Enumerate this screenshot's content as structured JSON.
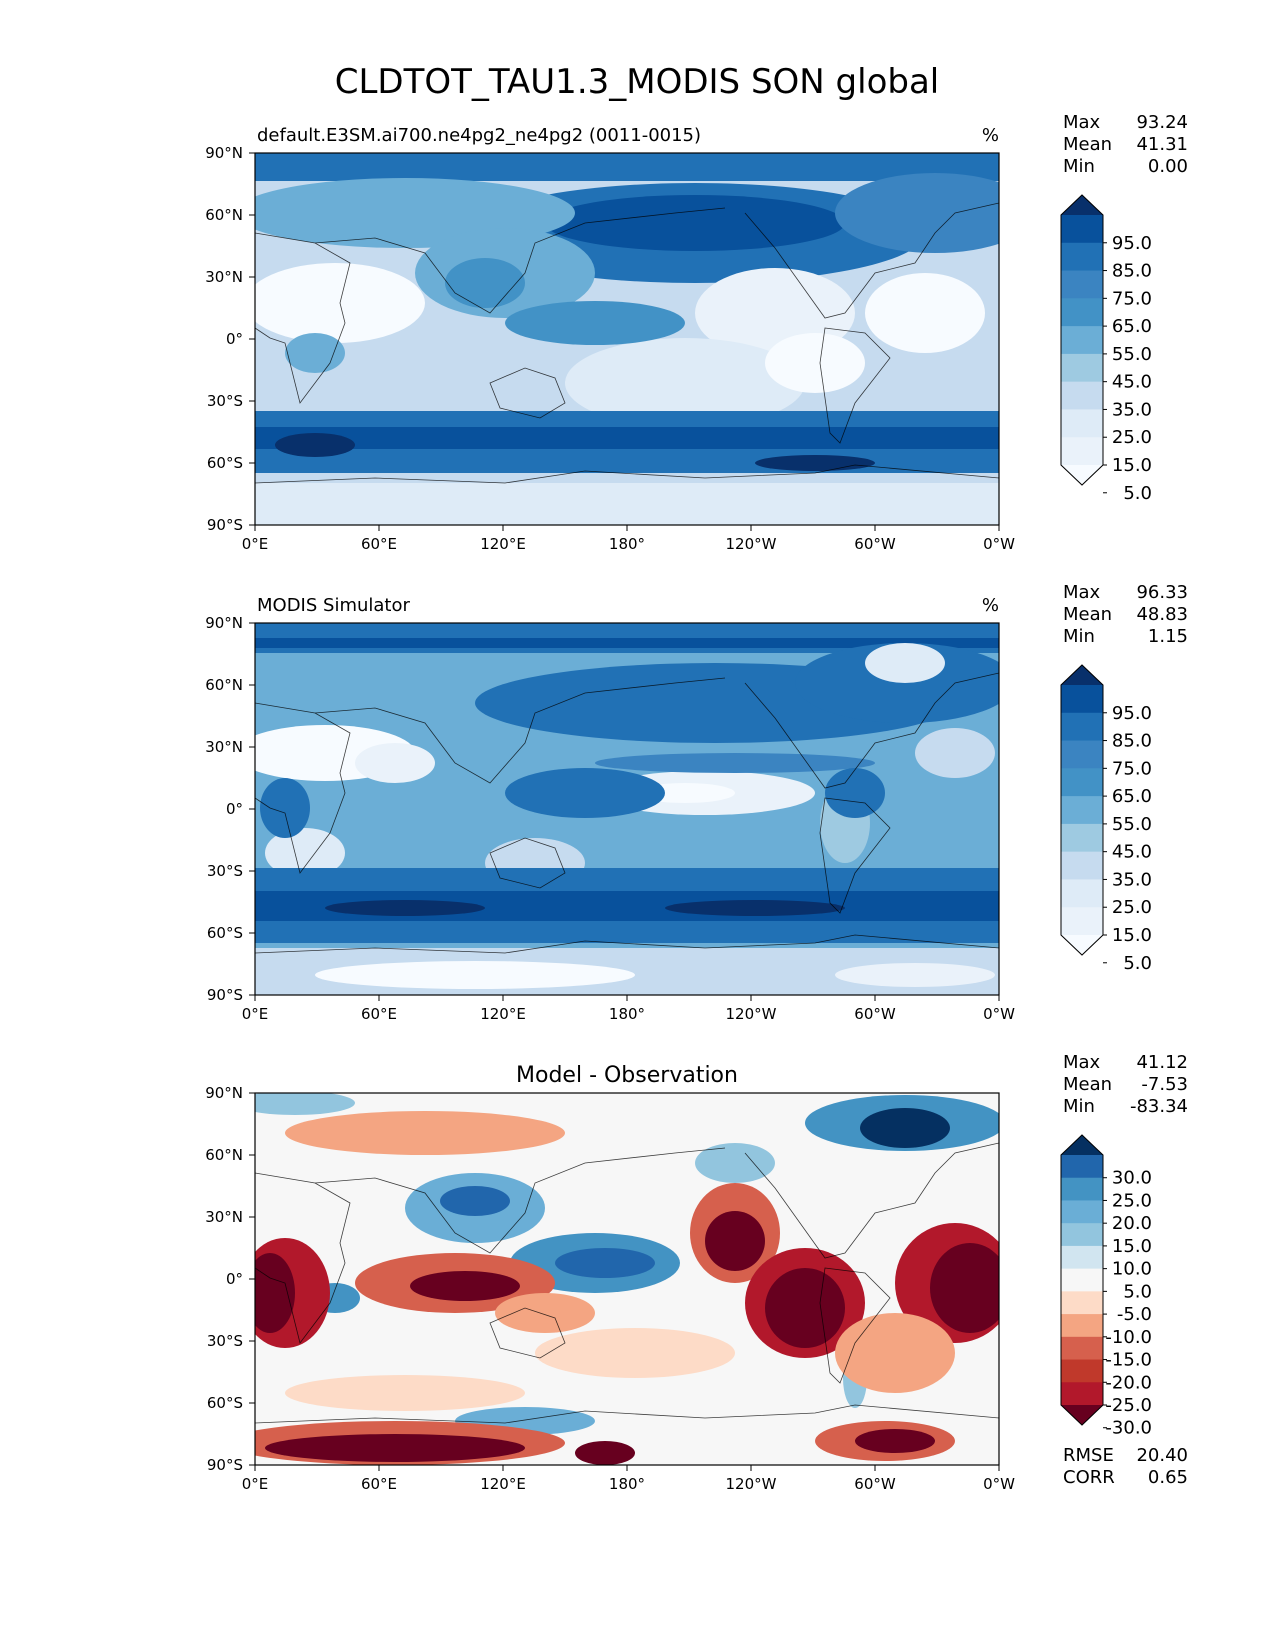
{
  "figure": {
    "title": "CLDTOT_TAU1.3_MODIS SON global"
  },
  "axes": {
    "lon_ticks": [
      "0°E",
      "60°E",
      "120°E",
      "180°",
      "120°W",
      "60°W",
      "0°W"
    ],
    "lat_ticks": [
      "90°N",
      "60°N",
      "30°N",
      "0°",
      "30°S",
      "60°S",
      "90°S"
    ]
  },
  "panels": [
    {
      "id": "model",
      "left_title": "default.E3SM.ai700.ne4pg2_ne4pg2 (0011-0015)",
      "center_title": "",
      "units": "%",
      "stats": [
        {
          "label": "Max",
          "value": "93.24"
        },
        {
          "label": "Mean",
          "value": "41.31"
        },
        {
          "label": "Min",
          "value": "0.00"
        }
      ],
      "colorbar": {
        "labels": [
          "95.0",
          "85.0",
          "75.0",
          "65.0",
          "55.0",
          "45.0",
          "35.0",
          "25.0",
          "15.0",
          "5.0"
        ],
        "colors": [
          "#08306b",
          "#08519c",
          "#2171b5",
          "#3b84c1",
          "#4292c6",
          "#6baed6",
          "#9ecae1",
          "#c6dbef",
          "#deebf7",
          "#eaf2fa",
          "#f7fbff"
        ]
      }
    },
    {
      "id": "obs",
      "left_title": "MODIS Simulator",
      "center_title": "",
      "units": "%",
      "stats": [
        {
          "label": "Max",
          "value": "96.33"
        },
        {
          "label": "Mean",
          "value": "48.83"
        },
        {
          "label": "Min",
          "value": "1.15"
        }
      ],
      "colorbar": {
        "labels": [
          "95.0",
          "85.0",
          "75.0",
          "65.0",
          "55.0",
          "45.0",
          "35.0",
          "25.0",
          "15.0",
          "5.0"
        ],
        "colors": [
          "#08306b",
          "#08519c",
          "#2171b5",
          "#3b84c1",
          "#4292c6",
          "#6baed6",
          "#9ecae1",
          "#c6dbef",
          "#deebf7",
          "#eaf2fa",
          "#f7fbff"
        ]
      }
    },
    {
      "id": "diff",
      "left_title": "",
      "center_title": "Model - Observation",
      "units": "",
      "stats": [
        {
          "label": "Max",
          "value": "41.12"
        },
        {
          "label": "Mean",
          "value": "-7.53"
        },
        {
          "label": "Min",
          "value": "-83.34"
        }
      ],
      "colorbar": {
        "labels": [
          "30.0",
          "25.0",
          "20.0",
          "15.0",
          "10.0",
          "5.0",
          "-5.0",
          "-10.0",
          "-15.0",
          "-20.0",
          "-25.0",
          "-30.0"
        ],
        "colors": [
          "#053061",
          "#2166ac",
          "#4393c3",
          "#6aaed6",
          "#92c5de",
          "#d1e5f0",
          "#f7f7f7",
          "#fddbc7",
          "#f4a582",
          "#d6604d",
          "#c0392b",
          "#b2182b",
          "#67001f"
        ]
      },
      "metrics": [
        {
          "label": "RMSE",
          "value": "20.40"
        },
        {
          "label": "CORR",
          "value": "0.65"
        }
      ]
    }
  ]
}
